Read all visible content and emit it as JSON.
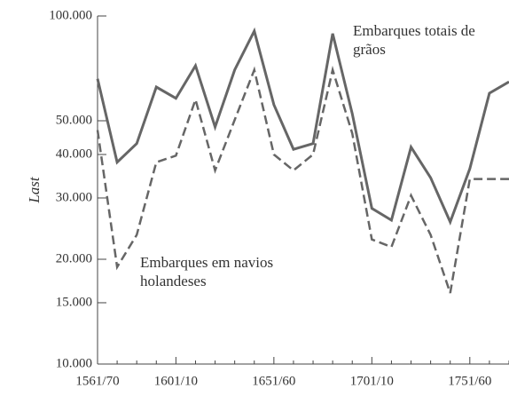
{
  "chart_data": {
    "type": "line",
    "y_label": "Last",
    "log_scale": true,
    "categories": [
      "1561/70",
      null,
      null,
      null,
      "1601/10",
      null,
      null,
      null,
      null,
      "1651/60",
      null,
      null,
      null,
      null,
      "1701/10",
      null,
      null,
      null,
      null,
      "1751/60",
      null,
      null
    ],
    "series": [
      {
        "name": "Embarques totais de grãos",
        "color": "#666666",
        "dash": false,
        "values": [
          66000,
          38000,
          43000,
          62500,
          58000,
          72000,
          48000,
          70000,
          90500,
          55600,
          41400,
          43000,
          89000,
          52400,
          28000,
          25900,
          42000,
          34300,
          25600,
          36400,
          60000,
          64700
        ]
      },
      {
        "name": "Embarques em navios holandeses",
        "color": "#666666",
        "dash": true,
        "values": [
          47000,
          19000,
          23500,
          38000,
          39700,
          57500,
          36000,
          50300,
          70000,
          40000,
          36000,
          40000,
          70000,
          46000,
          22800,
          21700,
          30500,
          23500,
          16000,
          34000,
          34000,
          34000
        ]
      }
    ],
    "ylim": [
      10000,
      100000
    ],
    "yticks": [
      {
        "value": 10000,
        "label": "10.000"
      },
      {
        "value": 15000,
        "label": "15.000"
      },
      {
        "value": 20000,
        "label": "20.000"
      },
      {
        "value": 30000,
        "label": "30.000"
      },
      {
        "value": 40000,
        "label": "40.000"
      },
      {
        "value": 50000,
        "label": "50.000"
      },
      {
        "value": 100000,
        "label": "100.000"
      }
    ]
  }
}
